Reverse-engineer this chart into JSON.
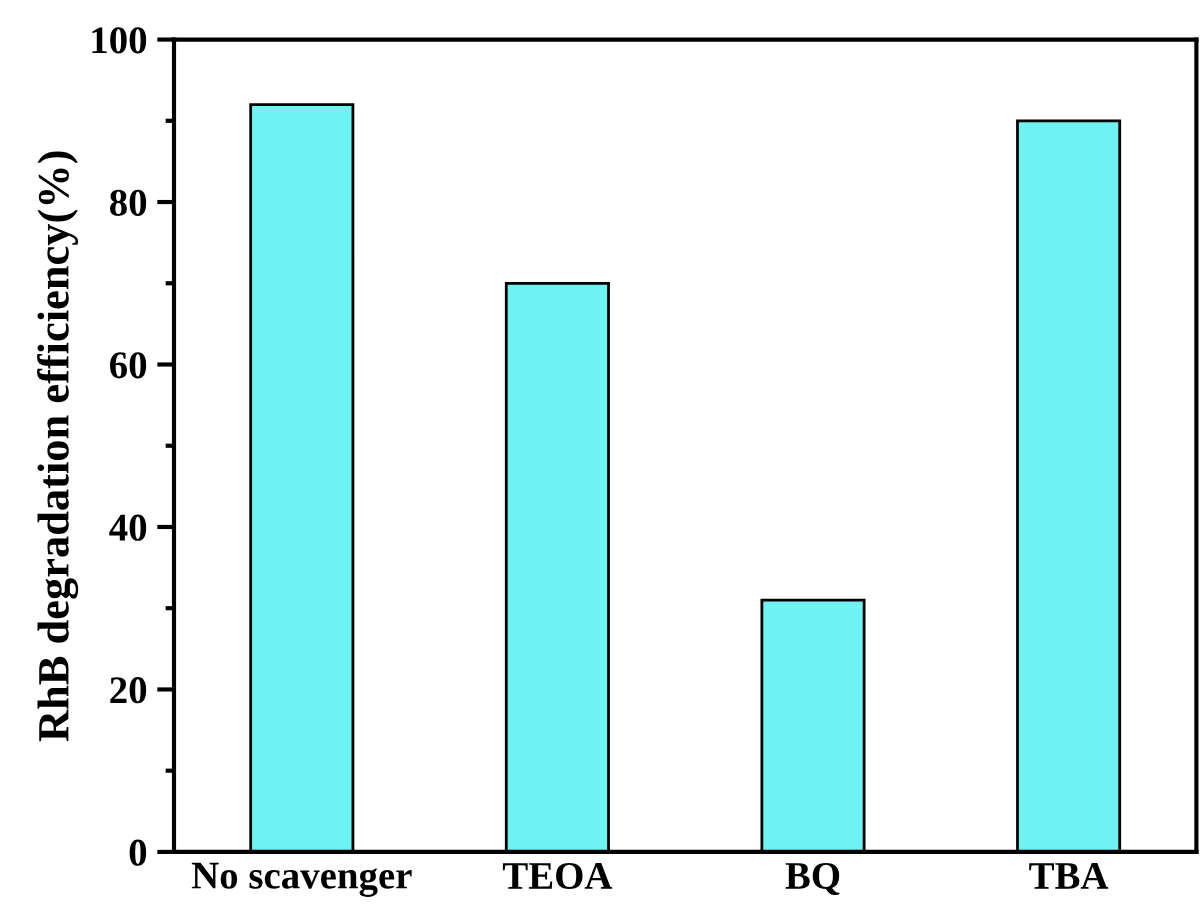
{
  "chart_data": {
    "type": "bar",
    "ylabel": "RhB degradation efficiency(%)",
    "categories": [
      "No scavenger",
      "TEOA",
      "BQ",
      "TBA"
    ],
    "values": [
      92,
      70,
      31,
      90
    ],
    "color": "#6ef2f2",
    "ylim": [
      0,
      100
    ],
    "yticks": [
      0,
      20,
      40,
      60,
      80,
      100
    ],
    "grid": false,
    "legend": false
  }
}
